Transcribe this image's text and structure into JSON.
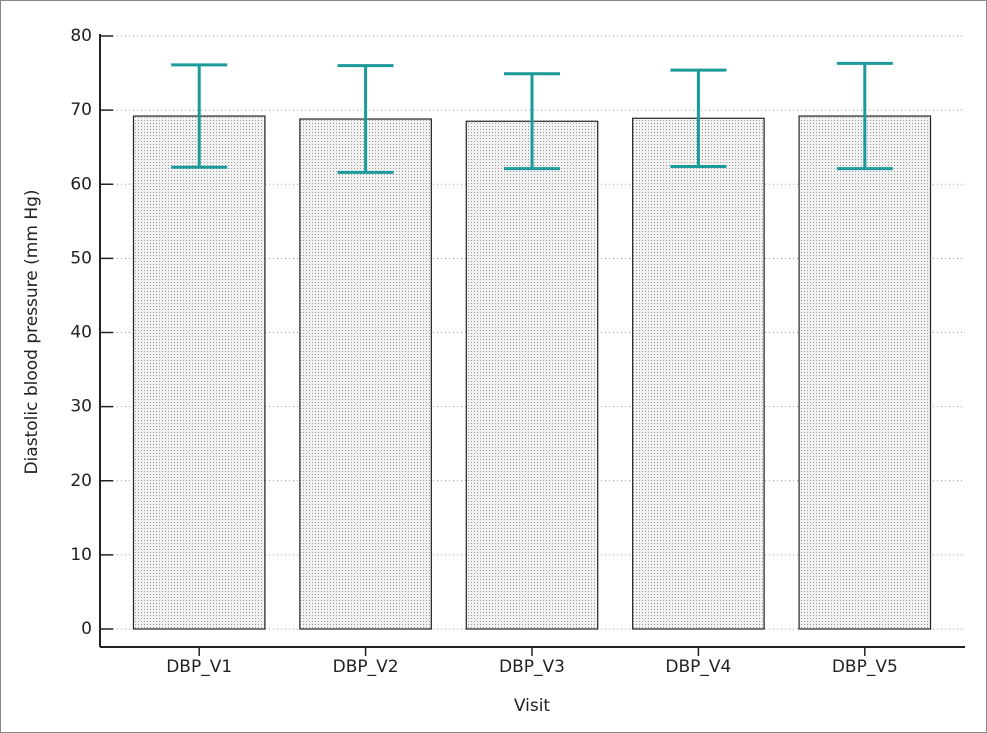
{
  "chart_data": {
    "type": "bar",
    "x_label": "Visit",
    "y_label": "Diastolic blood pressure (mm Hg)",
    "categories": [
      "DBP_V1",
      "DBP_V2",
      "DBP_V3",
      "DBP_V4",
      "DBP_V5"
    ],
    "values": [
      69.2,
      68.8,
      68.5,
      68.9,
      69.2
    ],
    "errors": [
      6.9,
      7.2,
      6.4,
      6.5,
      7.1
    ],
    "color": "#e6e6e6",
    "error_color": "#1a9a9a",
    "ylim": [
      0,
      80
    ],
    "yticks": [
      0,
      10,
      20,
      30,
      40,
      50,
      60,
      70,
      80
    ],
    "grid": true
  }
}
